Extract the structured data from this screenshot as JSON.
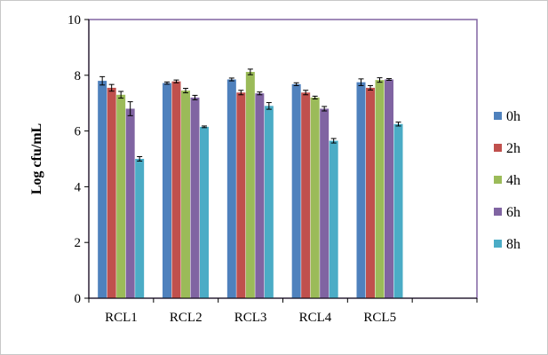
{
  "chart_data": {
    "type": "bar",
    "title": "",
    "xlabel": "",
    "ylabel": "Log cfu/mL",
    "ylim": [
      0,
      10
    ],
    "yticks": [
      0,
      2,
      4,
      6,
      8,
      10
    ],
    "categories": [
      "RCL1",
      "RCL2",
      "RCL3",
      "RCL4",
      "RCL5",
      ""
    ],
    "grid": false,
    "legend_position": "right",
    "series": [
      {
        "name": "0h",
        "color": "#4F81BD",
        "values": [
          7.8,
          7.72,
          7.85,
          7.68,
          7.75,
          null
        ],
        "errors": [
          0.15,
          0.04,
          0.05,
          0.05,
          0.12,
          null
        ]
      },
      {
        "name": "2h",
        "color": "#C0504D",
        "values": [
          7.55,
          7.78,
          7.38,
          7.38,
          7.55,
          null
        ],
        "errors": [
          0.12,
          0.05,
          0.08,
          0.08,
          0.08,
          null
        ]
      },
      {
        "name": "4h",
        "color": "#9BBB59",
        "values": [
          7.3,
          7.45,
          8.12,
          7.2,
          7.83,
          null
        ],
        "errors": [
          0.12,
          0.08,
          0.1,
          0.05,
          0.08,
          null
        ]
      },
      {
        "name": "6h",
        "color": "#8064A2",
        "values": [
          6.8,
          7.2,
          7.35,
          6.8,
          7.85,
          null
        ],
        "errors": [
          0.25,
          0.08,
          0.05,
          0.08,
          0.03,
          null
        ]
      },
      {
        "name": "8h",
        "color": "#4BACC6",
        "values": [
          5.0,
          6.15,
          6.9,
          5.65,
          6.25,
          null
        ],
        "errors": [
          0.08,
          0.03,
          0.12,
          0.08,
          0.07,
          null
        ]
      }
    ]
  }
}
